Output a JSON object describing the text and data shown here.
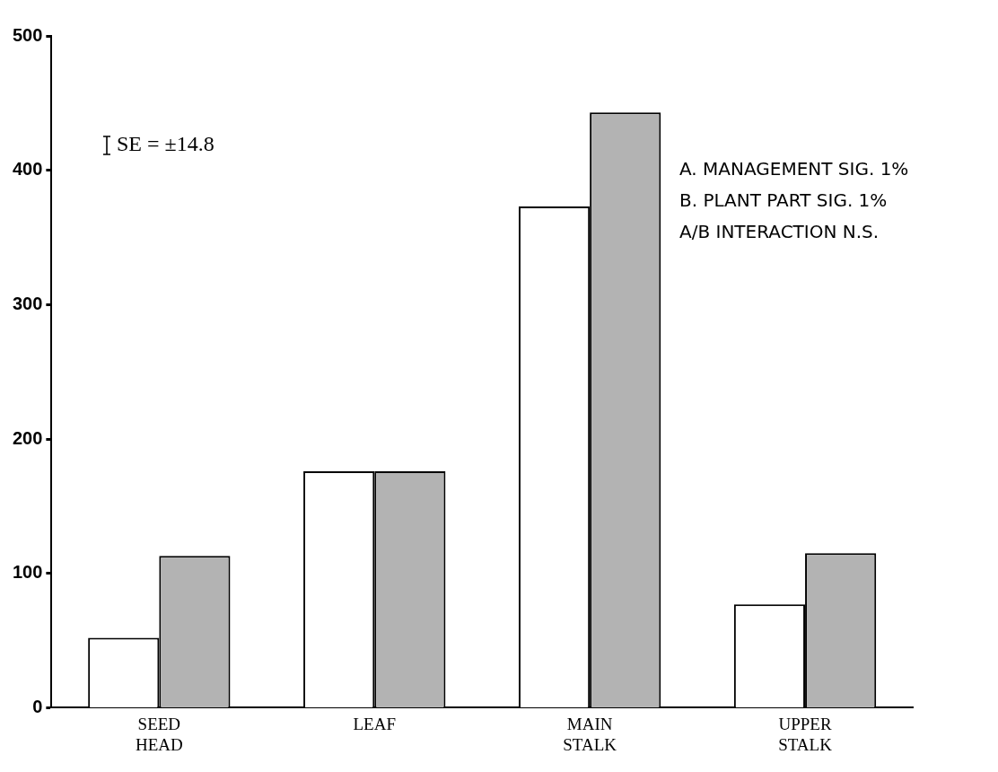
{
  "chart_data": {
    "type": "bar",
    "categories": [
      "SEED HEAD",
      "LEAF",
      "MAIN STALK",
      "UPPER STALK"
    ],
    "series": [
      {
        "color": "#ffffff",
        "values": [
          52,
          176,
          373,
          77
        ]
      },
      {
        "color": "#b3b3b3",
        "values": [
          113,
          176,
          443,
          115
        ]
      }
    ],
    "ylim": [
      0,
      500
    ],
    "yticks": [
      0,
      100,
      200,
      300,
      400,
      500
    ],
    "grid": false,
    "legend": false,
    "annotations": [
      "SE = ±14.8",
      "A. MANAGEMENT SIG. 1%",
      "B. PLANT PART SIG. 1%",
      "A/B INTERACTION N.S."
    ]
  }
}
